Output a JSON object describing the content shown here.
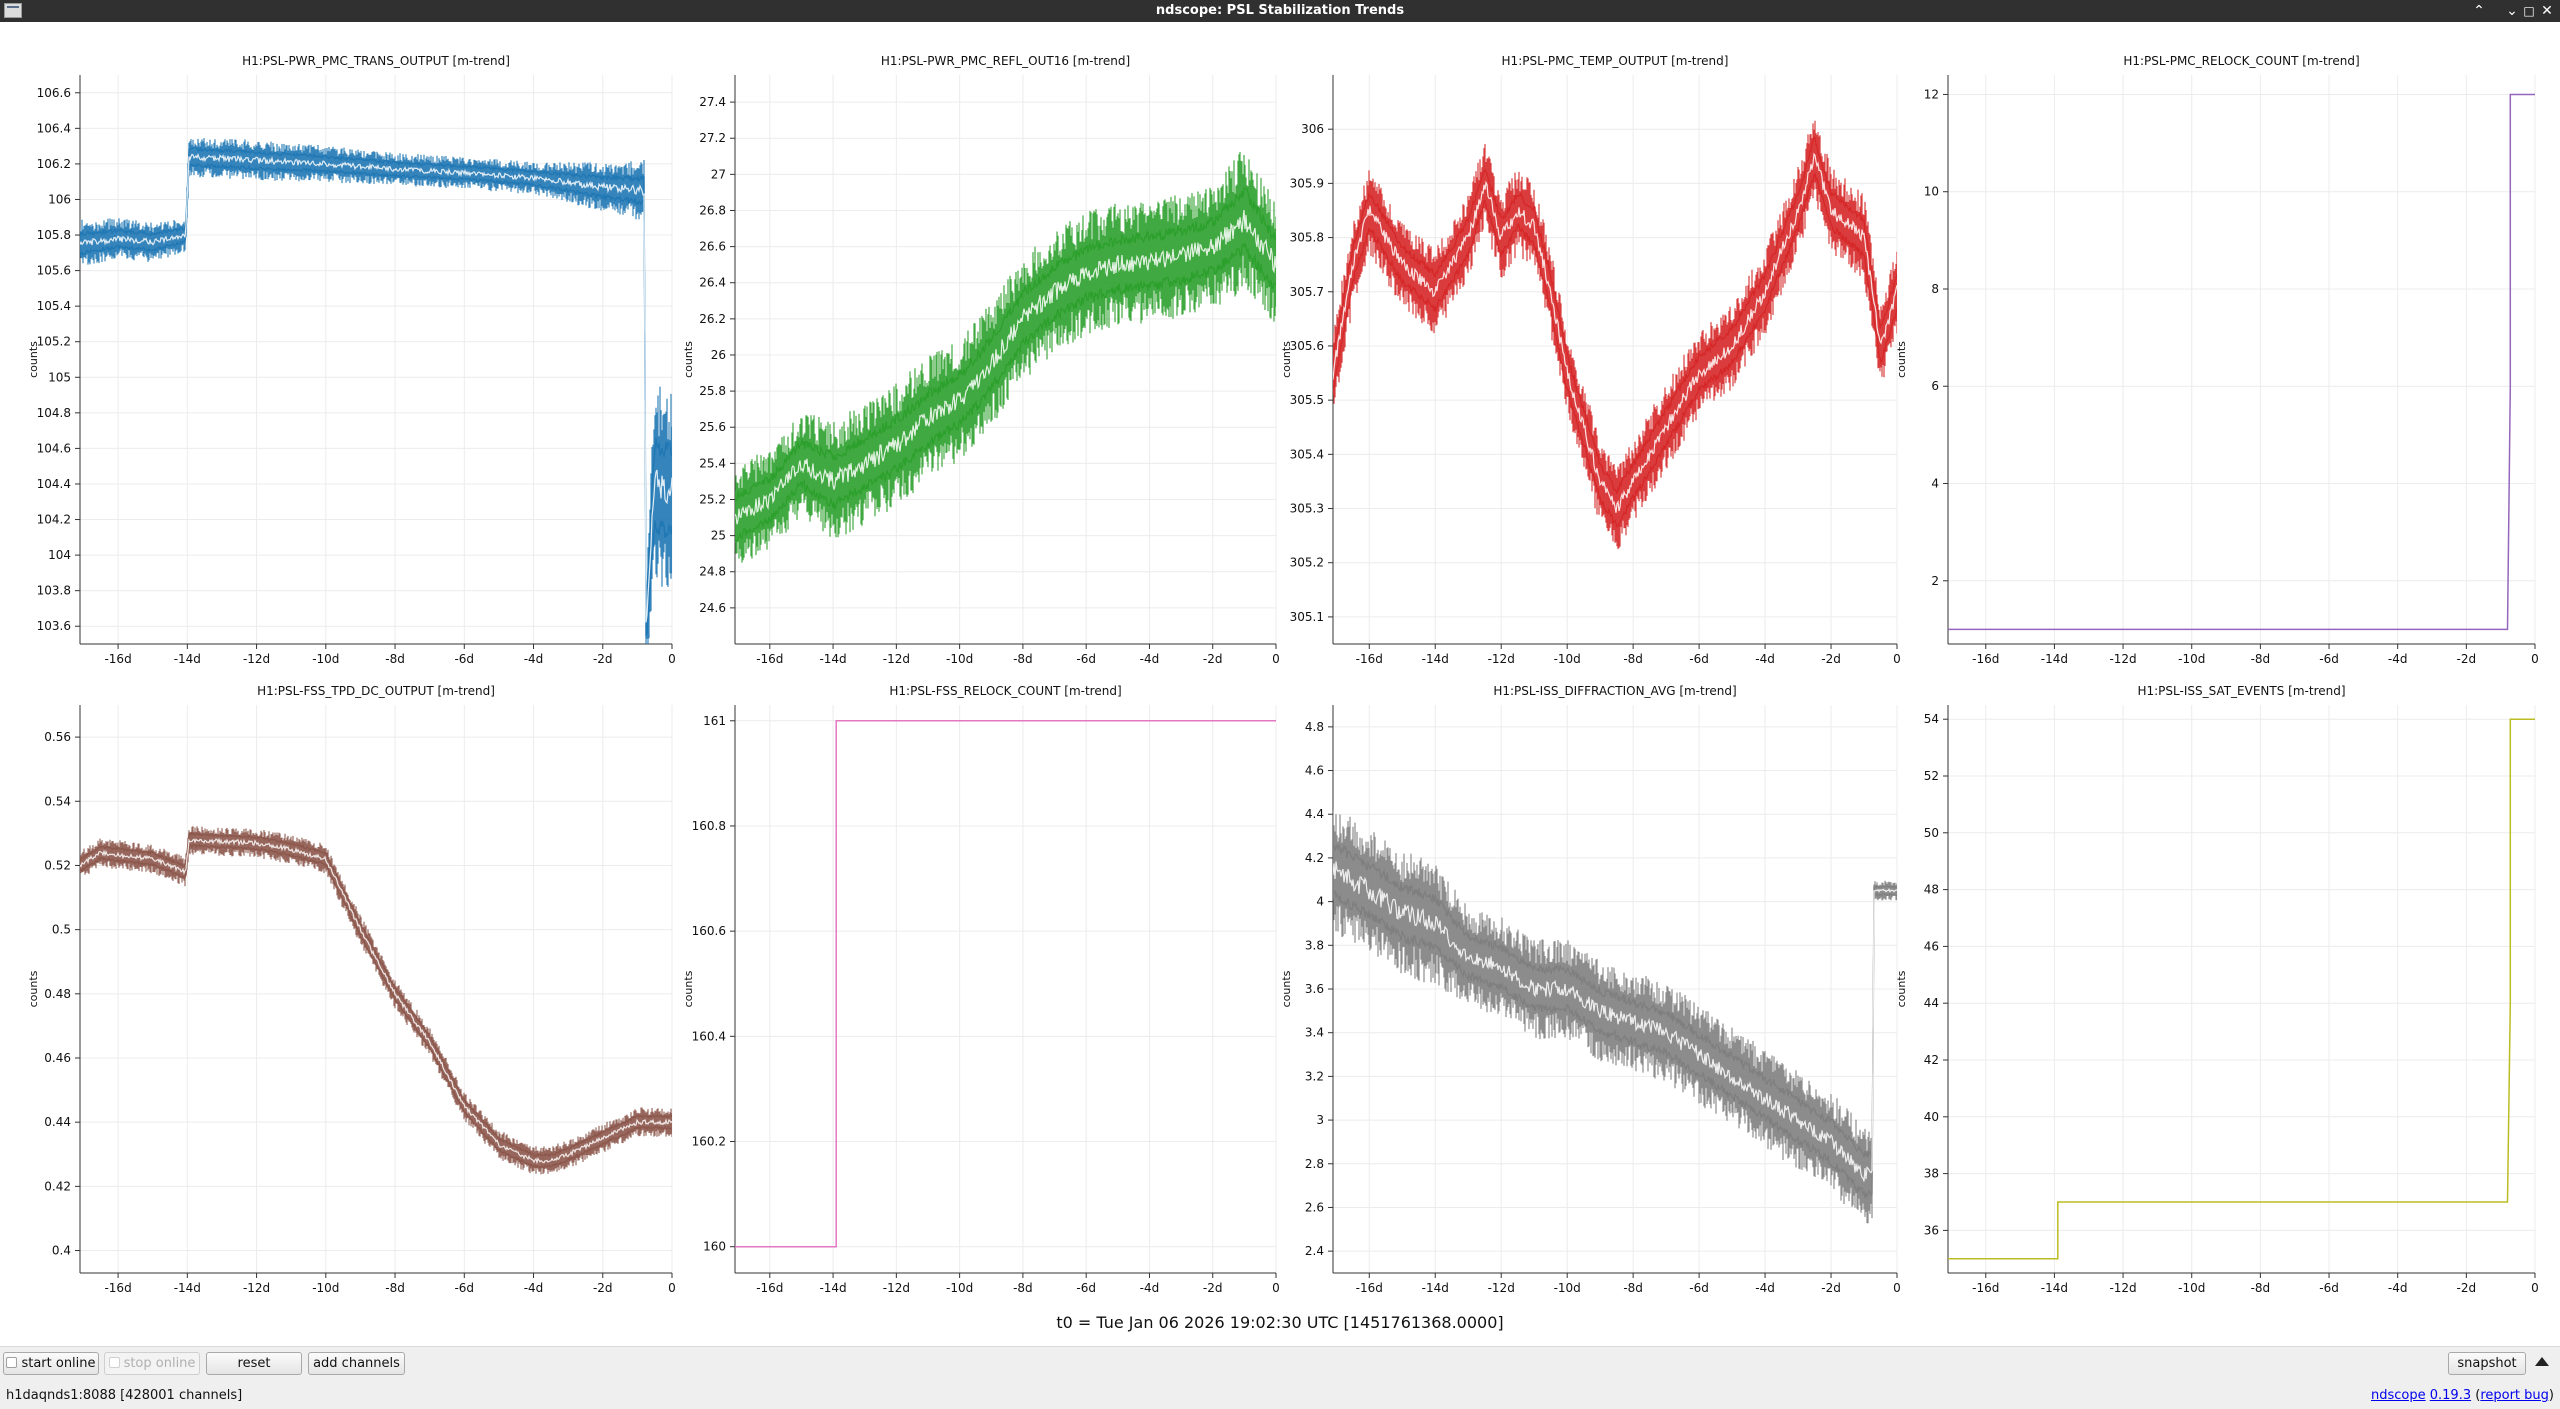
{
  "window": {
    "title": "ndscope: PSL Stabilization Trends",
    "icons": [
      "app-icon",
      "chevron-up-icon",
      "chevron-down-icon",
      "restore-icon",
      "close-icon"
    ]
  },
  "plots": [
    {
      "title": "H1:PSL-PWR_PMC_TRANS_OUTPUT [m-trend]",
      "ylabel": "counts",
      "color": "#1f77b4",
      "yticks": [
        "106.6",
        "106.4",
        "106.2",
        "106",
        "105.8",
        "105.6",
        "105.4",
        "105.2",
        "105",
        "104.8",
        "104.6",
        "104.4",
        "104.2",
        "104",
        "103.8",
        "103.6"
      ]
    },
    {
      "title": "H1:PSL-PWR_PMC_REFL_OUT16 [m-trend]",
      "ylabel": "counts",
      "color": "#2ca02c",
      "yticks": [
        "27.4",
        "27.2",
        "27",
        "26.8",
        "26.6",
        "26.4",
        "26.2",
        "26",
        "25.8",
        "25.6",
        "25.4",
        "25.2",
        "25",
        "24.8",
        "24.6"
      ]
    },
    {
      "title": "H1:PSL-PMC_TEMP_OUTPUT [m-trend]",
      "ylabel": "counts",
      "color": "#d62728",
      "yticks": [
        "306",
        "305.9",
        "305.8",
        "305.7",
        "305.6",
        "305.5",
        "305.4",
        "305.3",
        "305.2",
        "305.1"
      ]
    },
    {
      "title": "H1:PSL-PMC_RELOCK_COUNT [m-trend]",
      "ylabel": "counts",
      "color": "#9467bd",
      "yticks": [
        "12",
        "10",
        "8",
        "6",
        "4",
        "2"
      ]
    },
    {
      "title": "H1:PSL-FSS_TPD_DC_OUTPUT [m-trend]",
      "ylabel": "counts",
      "color": "#8c564b",
      "yticks": [
        "0.56",
        "0.54",
        "0.52",
        "0.5",
        "0.48",
        "0.46",
        "0.44",
        "0.42",
        "0.4"
      ]
    },
    {
      "title": "H1:PSL-FSS_RELOCK_COUNT [m-trend]",
      "ylabel": "counts",
      "color": "#e377c2",
      "yticks": [
        "161",
        "160.8",
        "160.6",
        "160.4",
        "160.2",
        "160"
      ]
    },
    {
      "title": "H1:PSL-ISS_DIFFRACTION_AVG [m-trend]",
      "ylabel": "counts",
      "color": "#7f7f7f",
      "yticks": [
        "4.8",
        "4.6",
        "4.4",
        "4.2",
        "4",
        "3.8",
        "3.6",
        "3.4",
        "3.2",
        "3",
        "2.8",
        "2.6",
        "2.4"
      ]
    },
    {
      "title": "H1:PSL-ISS_SAT_EVENTS [m-trend]",
      "ylabel": "counts",
      "color": "#bcbd22",
      "yticks": [
        "54",
        "52",
        "50",
        "48",
        "46",
        "44",
        "42",
        "40",
        "38",
        "36"
      ]
    }
  ],
  "xticks": [
    "-16d",
    "-14d",
    "-12d",
    "-10d",
    "-8d",
    "-6d",
    "-4d",
    "-2d",
    "0"
  ],
  "t0": "t0 = Tue Jan 06 2026 19:02:30 UTC [1451761368.0000]",
  "controls": {
    "start_online": "start online",
    "stop_online": "stop online",
    "reset": "reset",
    "add_channels": "add channels",
    "snapshot": "snapshot"
  },
  "status": {
    "server": "h1daqnds1:8088  [428001 channels]",
    "app_name": "ndscope",
    "version": "0.19.3",
    "report_bug": "report bug"
  },
  "chart_data": [
    {
      "type": "line",
      "title": "H1:PSL-PWR_PMC_TRANS_OUTPUT [m-trend]",
      "xlabel": "",
      "ylabel": "counts",
      "xlim": [
        -17.1,
        0
      ],
      "ylim": [
        103.5,
        106.7
      ],
      "series": [
        {
          "color": "#1f77b4",
          "x": [
            -17.1,
            -16,
            -15,
            -14.05,
            -13.95,
            -12,
            -10,
            -8,
            -6,
            -4,
            -2,
            -0.8,
            -0.75,
            -0.5,
            0
          ],
          "y": [
            105.75,
            105.78,
            105.76,
            105.8,
            106.24,
            106.22,
            106.2,
            106.17,
            106.15,
            106.12,
            106.07,
            106.05,
            103.6,
            104.4,
            104.35
          ],
          "spread": [
            0.12,
            0.1,
            0.1,
            0.08,
            0.1,
            0.1,
            0.09,
            0.08,
            0.08,
            0.08,
            0.12,
            0.15,
            0.2,
            0.5,
            0.5
          ]
        }
      ]
    },
    {
      "type": "line",
      "title": "H1:PSL-PWR_PMC_REFL_OUT16 [m-trend]",
      "xlabel": "",
      "ylabel": "counts",
      "xlim": [
        -17.1,
        0
      ],
      "ylim": [
        24.4,
        27.55
      ],
      "series": [
        {
          "color": "#2ca02c",
          "x": [
            -17.1,
            -16,
            -15,
            -14,
            -13,
            -12,
            -11,
            -10,
            -9,
            -8,
            -7,
            -6,
            -5,
            -4,
            -3,
            -2,
            -1,
            0
          ],
          "y": [
            25.1,
            25.2,
            25.4,
            25.3,
            25.4,
            25.5,
            25.65,
            25.75,
            25.95,
            26.2,
            26.35,
            26.45,
            26.5,
            26.52,
            26.55,
            26.6,
            26.75,
            26.5
          ],
          "spread": [
            0.25,
            0.25,
            0.25,
            0.3,
            0.3,
            0.3,
            0.3,
            0.3,
            0.3,
            0.3,
            0.3,
            0.3,
            0.3,
            0.3,
            0.3,
            0.3,
            0.35,
            0.3
          ]
        }
      ]
    },
    {
      "type": "line",
      "title": "H1:PSL-PMC_TEMP_OUTPUT [m-trend]",
      "xlabel": "",
      "ylabel": "counts",
      "xlim": [
        -17.1,
        0
      ],
      "ylim": [
        305.05,
        306.1
      ],
      "series": [
        {
          "color": "#d62728",
          "x": [
            -17.1,
            -16.5,
            -16,
            -15,
            -14,
            -13,
            -12.5,
            -12,
            -11.5,
            -11,
            -10.5,
            -10,
            -9.5,
            -9,
            -8.5,
            -8,
            -7,
            -6,
            -5,
            -4,
            -3,
            -2.5,
            -2,
            -1,
            -0.5,
            0
          ],
          "y": [
            305.55,
            305.75,
            305.85,
            305.75,
            305.7,
            305.8,
            305.9,
            305.8,
            305.85,
            305.82,
            305.7,
            305.55,
            305.45,
            305.35,
            305.3,
            305.35,
            305.45,
            305.55,
            305.6,
            305.7,
            305.85,
            305.95,
            305.85,
            305.8,
            305.6,
            305.7
          ],
          "spread": [
            0.07,
            0.07,
            0.07,
            0.07,
            0.07,
            0.07,
            0.07,
            0.07,
            0.07,
            0.07,
            0.07,
            0.07,
            0.07,
            0.07,
            0.07,
            0.07,
            0.07,
            0.07,
            0.07,
            0.07,
            0.07,
            0.07,
            0.07,
            0.07,
            0.07,
            0.07
          ]
        }
      ]
    },
    {
      "type": "line",
      "title": "H1:PSL-PMC_RELOCK_COUNT [m-trend]",
      "xlabel": "",
      "ylabel": "counts",
      "xlim": [
        -17.1,
        0
      ],
      "ylim": [
        0.7,
        12.4
      ],
      "series": [
        {
          "color": "#9467bd",
          "x": [
            -17.1,
            -0.8,
            -0.72,
            -0.72,
            0
          ],
          "y": [
            1,
            1,
            6,
            12,
            12
          ]
        }
      ]
    },
    {
      "type": "line",
      "title": "H1:PSL-FSS_TPD_DC_OUTPUT [m-trend]",
      "xlabel": "",
      "ylabel": "counts",
      "xlim": [
        -17.1,
        0
      ],
      "ylim": [
        0.393,
        0.57
      ],
      "series": [
        {
          "color": "#8c564b",
          "x": [
            -17.1,
            -16.5,
            -15,
            -14.05,
            -13.95,
            -12,
            -11,
            -10,
            -9,
            -8,
            -7,
            -6,
            -5,
            -4,
            -3.5,
            -3,
            -2,
            -1,
            -0.8
          ],
          "y": [
            0.52,
            0.524,
            0.522,
            0.518,
            0.528,
            0.527,
            0.525,
            0.522,
            0.5,
            0.48,
            0.465,
            0.445,
            0.433,
            0.428,
            0.428,
            0.43,
            0.435,
            0.44,
            0.44
          ],
          "spread": [
            0.004,
            0.004,
            0.004,
            0.004,
            0.004,
            0.004,
            0.004,
            0.004,
            0.004,
            0.004,
            0.004,
            0.004,
            0.004,
            0.004,
            0.004,
            0.004,
            0.004,
            0.004,
            0.004
          ]
        }
      ]
    },
    {
      "type": "line",
      "title": "H1:PSL-FSS_RELOCK_COUNT [m-trend]",
      "xlabel": "",
      "ylabel": "counts",
      "xlim": [
        -17.1,
        0
      ],
      "ylim": [
        159.95,
        161.03
      ],
      "series": [
        {
          "color": "#e377c2",
          "x": [
            -17.1,
            -13.9,
            -13.9,
            0
          ],
          "y": [
            160,
            160,
            161,
            161
          ]
        }
      ]
    },
    {
      "type": "line",
      "title": "H1:PSL-ISS_DIFFRACTION_AVG [m-trend]",
      "xlabel": "",
      "ylabel": "counts",
      "xlim": [
        -17.1,
        0
      ],
      "ylim": [
        2.3,
        4.9
      ],
      "series": [
        {
          "color": "#7f7f7f",
          "x": [
            -17.1,
            -16,
            -15,
            -14,
            -13,
            -12,
            -11,
            -10,
            -9,
            -8,
            -7,
            -6,
            -5,
            -4,
            -3,
            -2,
            -1,
            -0.75,
            -0.7,
            0
          ],
          "y": [
            4.15,
            4.05,
            3.95,
            3.9,
            3.75,
            3.7,
            3.6,
            3.6,
            3.5,
            3.45,
            3.4,
            3.3,
            3.2,
            3.1,
            3,
            2.9,
            2.75,
            2.75,
            4.05,
            4.05
          ],
          "spread": [
            0.25,
            0.25,
            0.25,
            0.25,
            0.2,
            0.2,
            0.2,
            0.2,
            0.2,
            0.2,
            0.2,
            0.2,
            0.2,
            0.2,
            0.2,
            0.2,
            0.2,
            0.2,
            0.04,
            0.04
          ]
        }
      ]
    },
    {
      "type": "line",
      "title": "H1:PSL-ISS_SAT_EVENTS [m-trend]",
      "xlabel": "",
      "ylabel": "counts",
      "xlim": [
        -17.1,
        0
      ],
      "ylim": [
        34.5,
        54.5
      ],
      "series": [
        {
          "color": "#bcbd22",
          "x": [
            -17.1,
            -13.9,
            -13.9,
            -0.8,
            -0.72,
            -0.72,
            0
          ],
          "y": [
            35,
            35,
            37,
            37,
            44,
            54,
            54
          ]
        }
      ]
    }
  ]
}
